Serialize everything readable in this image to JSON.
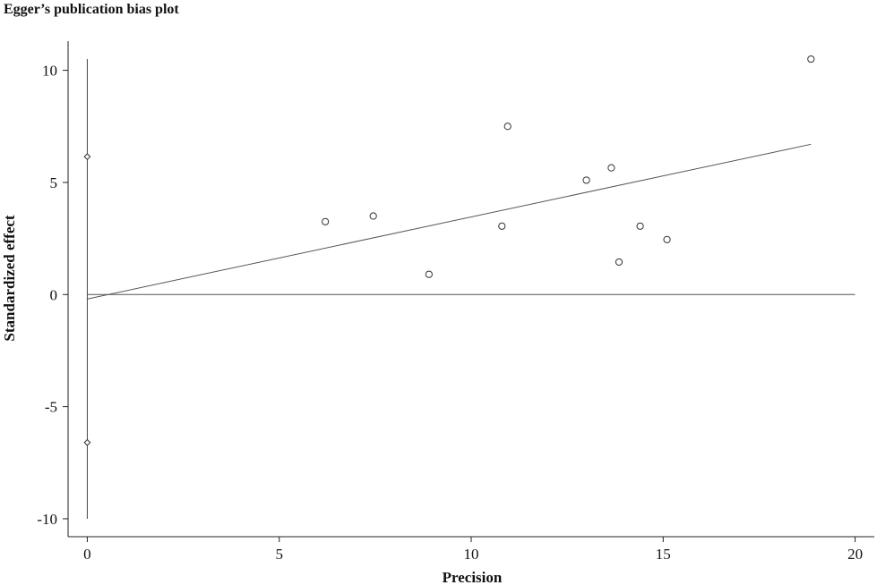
{
  "chart_data": {
    "type": "scatter",
    "title": "Egger’s publication bias plot",
    "xlabel": "Precision",
    "ylabel": "Standardized effect",
    "xlim": [
      -0.5,
      20.5
    ],
    "ylim": [
      -10.8,
      11.3
    ],
    "xticks": [
      0,
      5,
      10,
      15,
      20
    ],
    "yticks": [
      10,
      5,
      0,
      -5,
      -10
    ],
    "ytick_labels": [
      "10",
      "5",
      "0",
      "-5",
      "-10"
    ],
    "grid": false,
    "points": [
      {
        "x": 6.2,
        "y": 3.25
      },
      {
        "x": 7.45,
        "y": 3.5
      },
      {
        "x": 8.9,
        "y": 0.9
      },
      {
        "x": 10.8,
        "y": 3.05
      },
      {
        "x": 10.95,
        "y": 7.5
      },
      {
        "x": 13.0,
        "y": 5.1
      },
      {
        "x": 13.65,
        "y": 5.65
      },
      {
        "x": 13.85,
        "y": 1.45
      },
      {
        "x": 14.4,
        "y": 3.05
      },
      {
        "x": 15.1,
        "y": 2.45
      },
      {
        "x": 18.85,
        "y": 10.5
      }
    ],
    "regression_line": {
      "x": [
        0,
        18.85
      ],
      "y": [
        -0.2,
        6.7
      ]
    },
    "zero_line": {
      "x": [
        0,
        20
      ],
      "y": 0
    },
    "ci_markers": [
      {
        "x": 0,
        "y": 6.15
      },
      {
        "x": 0,
        "y": -6.6
      }
    ],
    "ci_segment": {
      "x": 0,
      "y": [
        -10,
        10.5
      ]
    }
  }
}
